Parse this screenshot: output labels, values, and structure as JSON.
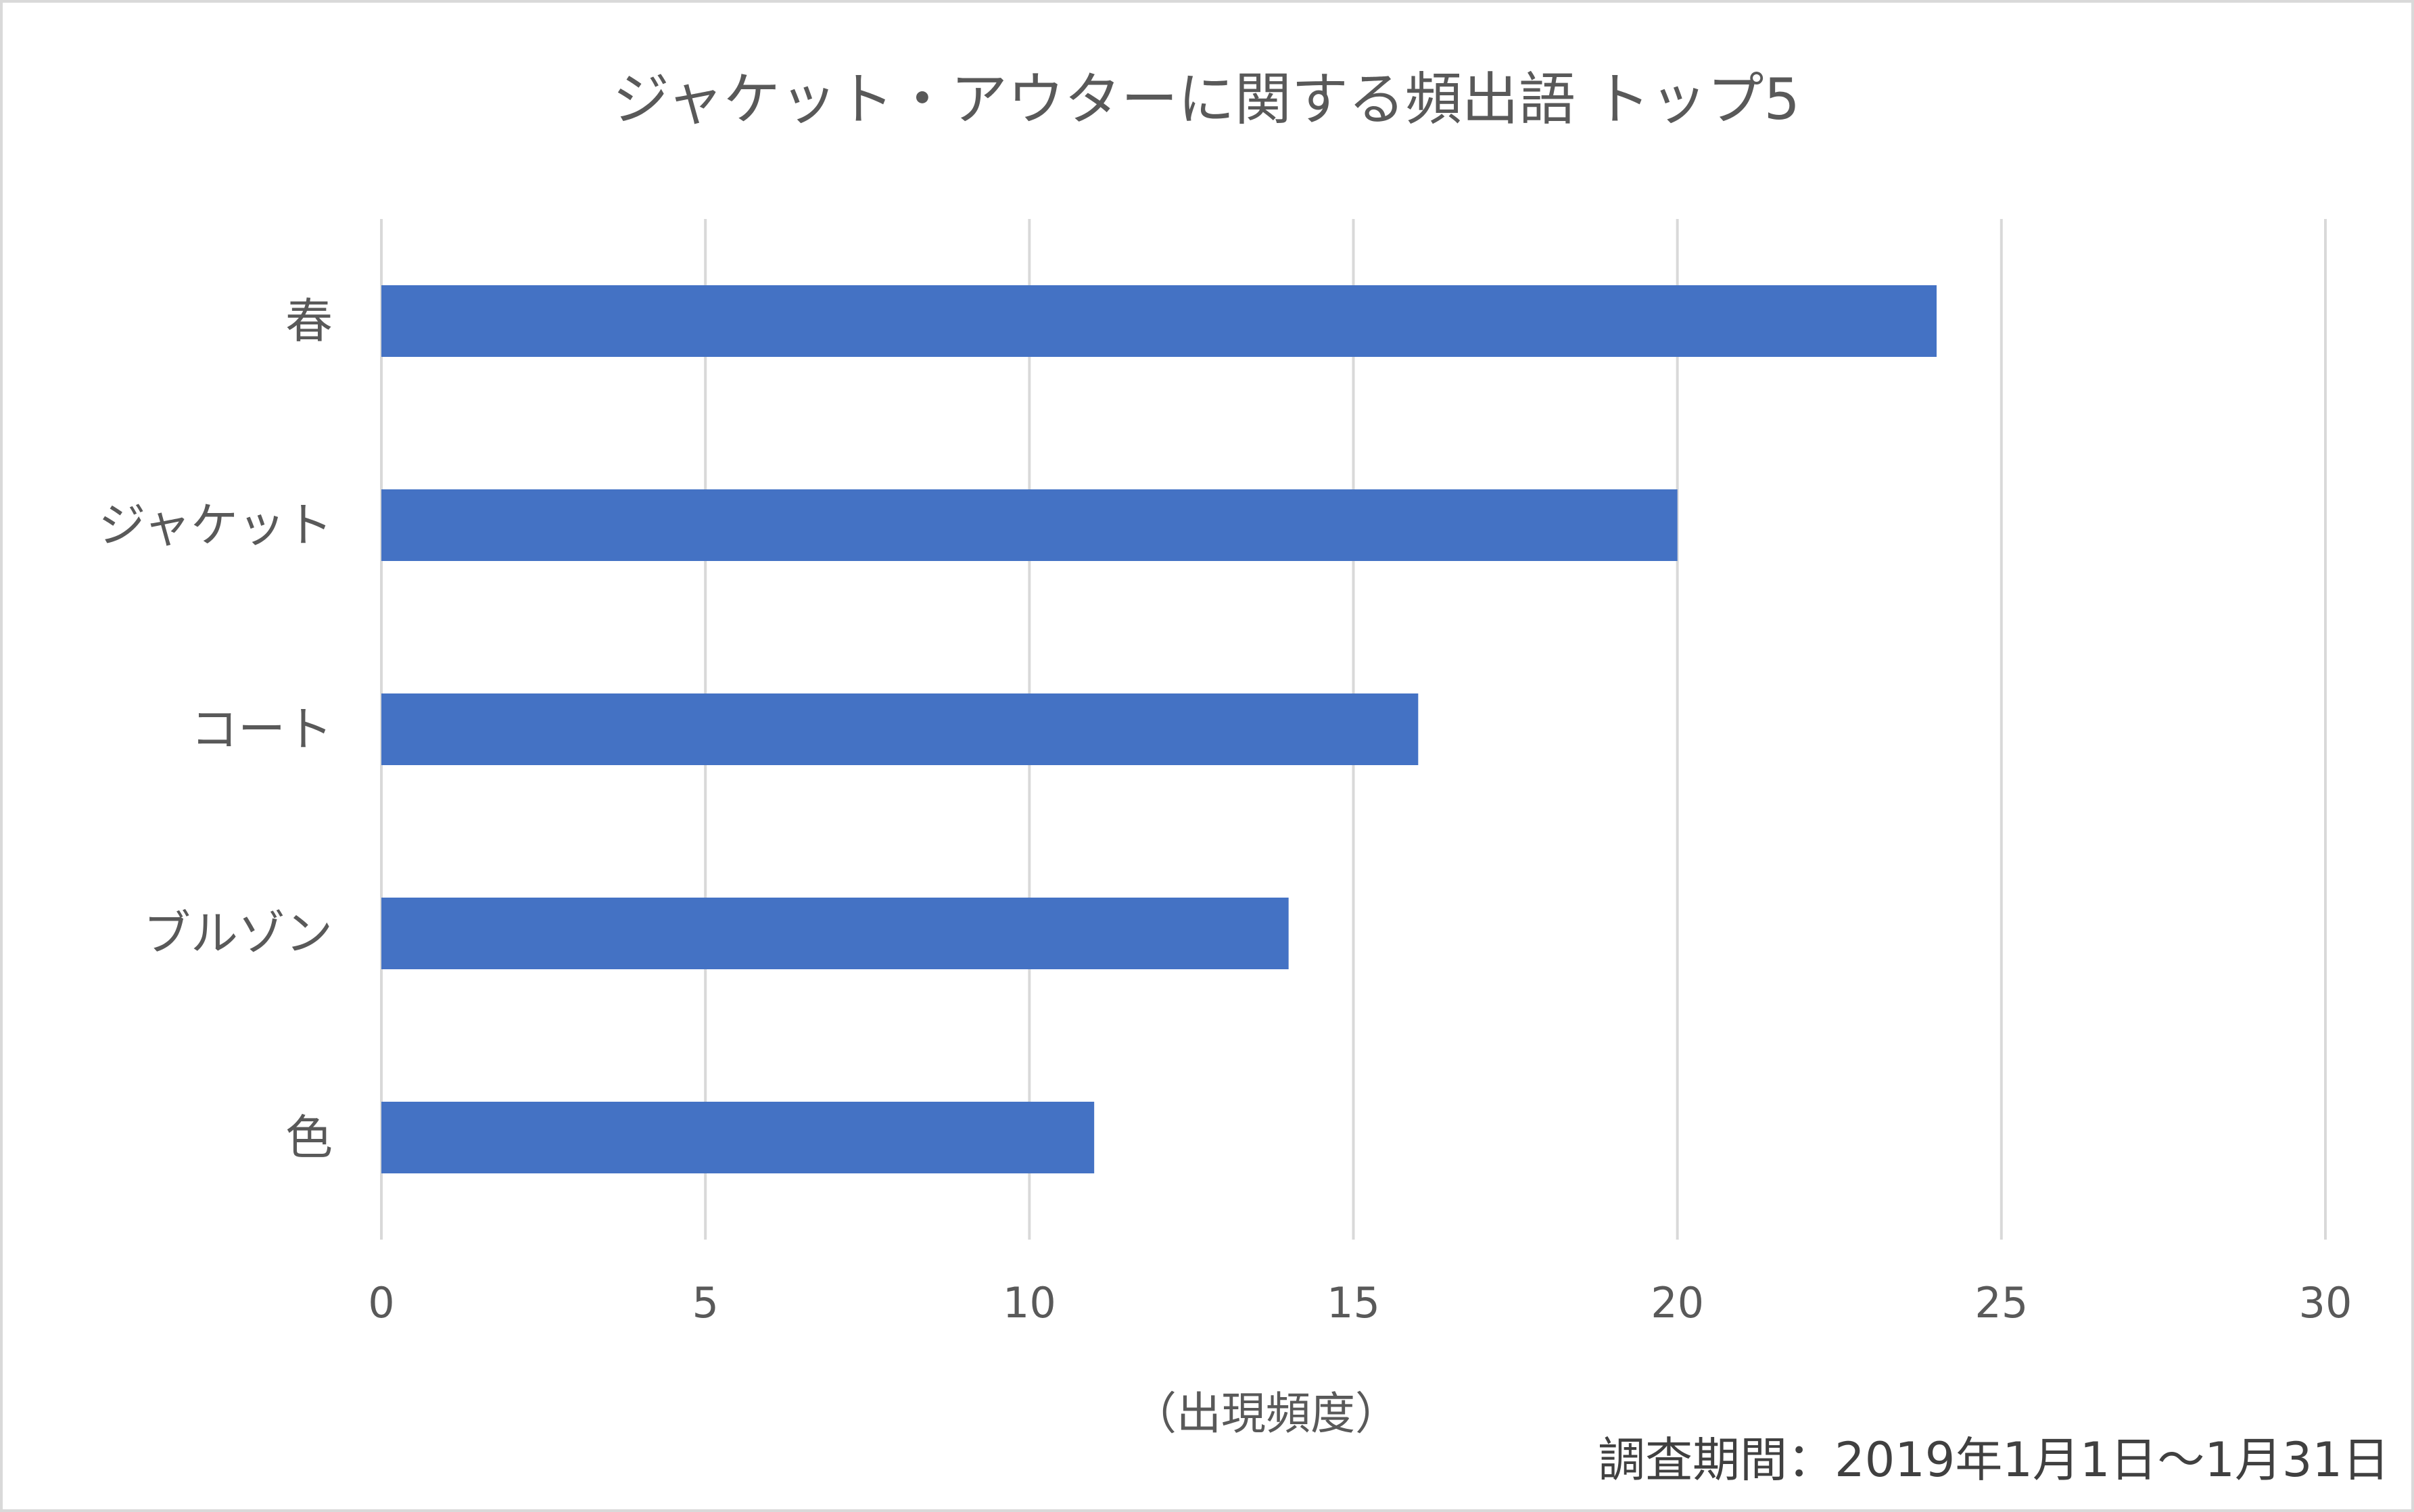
{
  "chart_data": {
    "type": "bar",
    "orientation": "horizontal",
    "title": "ジャケット・アウターに関する頻出語 トップ5",
    "categories": [
      "春",
      "ジャケット",
      "コート",
      "ブルゾン",
      "色"
    ],
    "values": [
      24,
      20,
      16,
      14,
      11
    ],
    "xlim": [
      0,
      30
    ],
    "xticks": [
      0,
      5,
      10,
      15,
      20,
      25,
      30
    ],
    "xlabel": "（出現頻度）",
    "ylabel": "",
    "grid": true,
    "legend": "none",
    "bar_color": "#4472C4"
  },
  "note": "調査期間：2019年1月1日〜1月31日"
}
